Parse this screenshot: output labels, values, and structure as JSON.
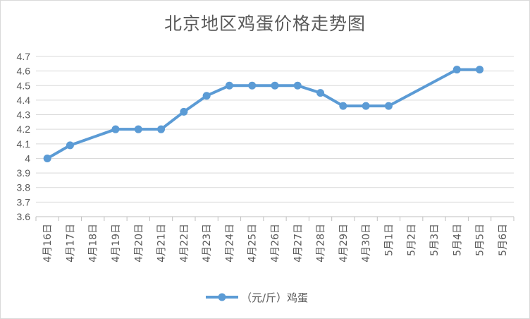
{
  "chart_data": {
    "type": "line",
    "title": "北京地区鸡蛋价格走势图",
    "categories": [
      "4月16日",
      "4月17日",
      "4月18日",
      "4月19日",
      "4月20日",
      "4月21日",
      "4月22日",
      "4月23日",
      "4月24日",
      "4月25日",
      "4月26日",
      "4月27日",
      "4月28日",
      "4月29日",
      "4月30日",
      "5月1日",
      "5月2日",
      "5月3日",
      "5月4日",
      "5月5日",
      "5月6日"
    ],
    "series": [
      {
        "name": "（元/斤）鸡蛋",
        "values": [
          4.0,
          4.09,
          null,
          4.2,
          4.2,
          4.2,
          4.32,
          4.43,
          4.5,
          4.5,
          4.5,
          4.5,
          4.45,
          4.36,
          4.36,
          4.36,
          null,
          null,
          4.61,
          4.61,
          null
        ],
        "color": "#5b9bd5"
      }
    ],
    "ylim": [
      3.6,
      4.7
    ],
    "yticks": [
      "3.6",
      "3.7",
      "3.8",
      "3.9",
      "4",
      "4.1",
      "4.2",
      "4.3",
      "4.4",
      "4.5",
      "4.6",
      "4.7"
    ],
    "grid": true,
    "legend": "bottom",
    "connect_gaps": true
  }
}
